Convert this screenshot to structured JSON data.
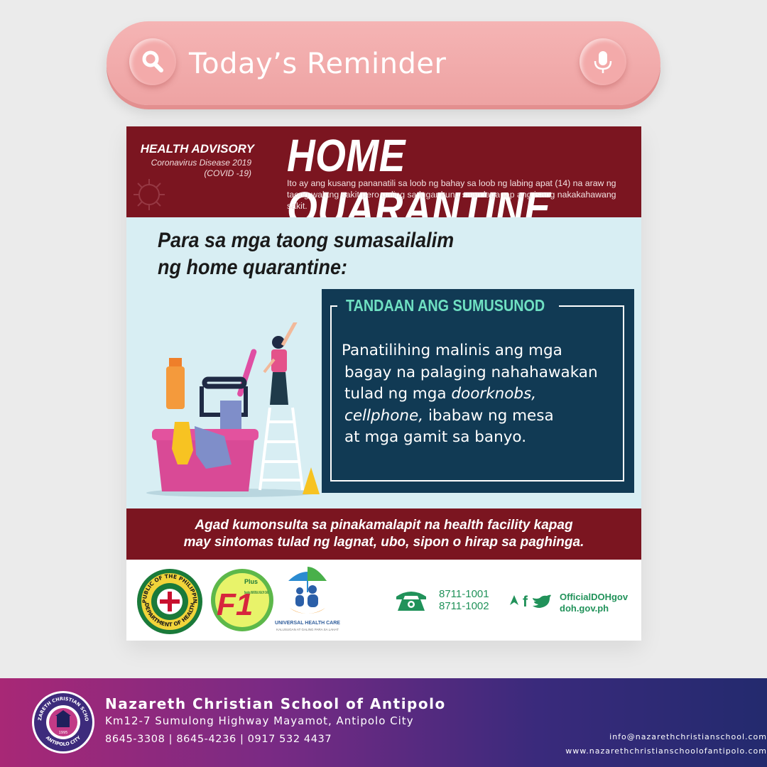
{
  "search": {
    "title": "Today’s Reminder",
    "search_icon": "search-icon",
    "mic_icon": "microphone-icon"
  },
  "poster": {
    "header": {
      "advisory_title": "HEALTH ADVISORY",
      "advisory_sub1": "Coronavirus Disease 2019",
      "advisory_sub2": "(COVID -19)",
      "main_title": "HOME QUARANTINE",
      "description": "Ito ay ang kusang pananatili sa loob ng bahay sa loob ng labing apat (14) na araw ng taong walang sakit pero galing sa lugar kung saan laganap ang isang nakakahawang sakit."
    },
    "body": {
      "heading_line1": "Para sa mga taong sumasailalim",
      "heading_line2": "ng home quarantine:",
      "box_title": "TANDAAN ANG SUMUSUNOD",
      "line1": "Panatilihing malinis ang mga",
      "line2": "bagay na palaging nahahawakan",
      "line3_pre": "tulad ng mga ",
      "line3_em": "doorknobs,",
      "line4_em": "cellphone,",
      "line4_post": " ibabaw ng mesa",
      "line5": "at mga gamit sa banyo."
    },
    "footer_band": {
      "line1": "Agad kumonsulta sa pinakamalapit na health facility kapag",
      "line2": "may sintomas tulad ng lagnat, ubo, sipon o hirap sa paghinga."
    },
    "logos": {
      "doh_top": "REPUBLIC OF THE PHILIPPINES",
      "doh_bottom": "DEPARTMENT OF HEALTH",
      "f1_mark": "F1",
      "f1_plus": "Plus",
      "f1_tag": "Boosting UNIVERSAL HEALTH CARE",
      "uhc_label": "UNIVERSAL HEALTH CARE",
      "uhc_tag": "KALUSUGAN AT GALING PARA SA LAHAT",
      "phone1": "8711-1001",
      "phone2": "8711-1002",
      "social_handle": "OfficialDOHgov",
      "website": "doh.gov.ph"
    }
  },
  "school": {
    "name": "Nazareth Christian School of Antipolo",
    "address": "Km12-7 Sumulong Highway Mayamot, Antipolo City",
    "phones": "8645-3308 | 8645-4236 | 0917 532 4437",
    "email": "info@nazarethchristianschool.com",
    "website": "www.nazarethchristianschoolofantipolo.com",
    "seal_top": "NAZARETH CHRISTIAN SCHOOL",
    "seal_bottom": "ANTIPOLO CITY",
    "seal_year": "1995"
  },
  "colors": {
    "searchbar": "#f2adad",
    "maroon": "#7b1520",
    "teal_box": "#113a54",
    "mint": "#6fe0c2",
    "doh_green": "#21925a"
  }
}
